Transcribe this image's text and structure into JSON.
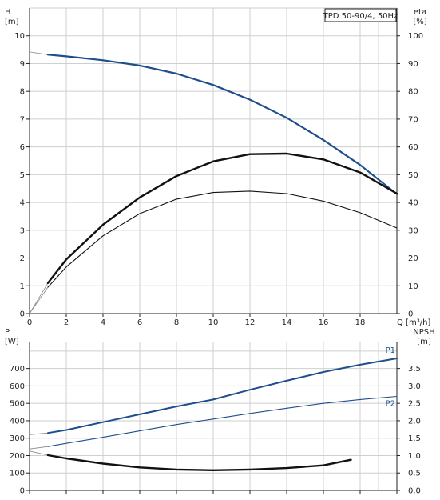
{
  "chart_data": [
    {
      "type": "line",
      "title": "TPD 50-90/4, 50Hz",
      "xlabel": "Q [m³/h]",
      "ylabel_left": [
        "H",
        "[m]"
      ],
      "ylabel_right": [
        "eta",
        "[%]"
      ],
      "xlim": [
        0,
        20
      ],
      "ylim_left": [
        0,
        11
      ],
      "ylim_right": [
        0,
        110
      ],
      "x_ticks": [
        0,
        2,
        4,
        6,
        8,
        10,
        12,
        14,
        16,
        18
      ],
      "y_ticks_left": [
        0,
        1,
        2,
        3,
        4,
        5,
        6,
        7,
        8,
        9,
        10
      ],
      "y_ticks_right": [
        0,
        10,
        20,
        30,
        40,
        50,
        60,
        70,
        80,
        90,
        100
      ],
      "grid": true,
      "series": [
        {
          "axis": "left",
          "color": "#1f4e8c",
          "x": [
            1,
            2,
            4,
            6,
            8,
            10,
            12,
            14,
            16,
            18,
            20
          ],
          "values": [
            9.32,
            9.26,
            9.12,
            8.93,
            8.64,
            8.23,
            7.7,
            7.05,
            6.25,
            5.35,
            4.3
          ]
        },
        {
          "axis": "right",
          "color": "#111111",
          "x": [
            1,
            2,
            4,
            6,
            8,
            10,
            12,
            14,
            16,
            18,
            20
          ],
          "values": [
            9.5,
            16.8,
            28,
            36,
            41.2,
            43.6,
            44.1,
            43.2,
            40.5,
            36.3,
            30.8
          ]
        },
        {
          "axis": "right",
          "color": "#111111",
          "x": [
            1,
            2,
            4,
            6,
            8,
            10,
            12,
            14,
            16,
            18,
            20
          ],
          "values": [
            11,
            19.5,
            32,
            41.8,
            49.5,
            54.8,
            57.4,
            57.6,
            55.5,
            50.8,
            43.2
          ]
        }
      ]
    },
    {
      "type": "line",
      "xlim": [
        0,
        20
      ],
      "ylim_left": [
        0,
        850
      ],
      "ylim_right": [
        0,
        4.25
      ],
      "ylabel_left": [
        "P",
        "[W]"
      ],
      "ylabel_right": [
        "NPSH",
        "[m]"
      ],
      "y_ticks_left": [
        0,
        100,
        200,
        300,
        400,
        500,
        600,
        700
      ],
      "y_ticks_right": [
        "0.0",
        "0.5",
        "1.0",
        "1.5",
        "2.0",
        "2.5",
        "3.0",
        "3.5"
      ],
      "grid": true,
      "series": [
        {
          "name": "P1",
          "axis": "left",
          "color": "#1f4e8c",
          "x": [
            1,
            2,
            4,
            6,
            8,
            10,
            12,
            14,
            16,
            18,
            20
          ],
          "values": [
            330,
            347,
            392,
            437,
            482,
            522,
            578,
            630,
            680,
            722,
            758
          ]
        },
        {
          "name": "P2",
          "axis": "left",
          "color": "#1f4e8c",
          "x": [
            1,
            2,
            4,
            6,
            8,
            10,
            12,
            14,
            16,
            18,
            20
          ],
          "values": [
            252,
            270,
            305,
            342,
            378,
            410,
            442,
            472,
            500,
            522,
            540
          ]
        },
        {
          "axis": "right",
          "color": "#111111",
          "x": [
            1,
            2,
            4,
            6,
            8,
            10,
            12,
            14,
            16,
            17.5
          ],
          "values": [
            1.01,
            0.92,
            0.77,
            0.66,
            0.6,
            0.58,
            0.6,
            0.64,
            0.72,
            0.88
          ]
        }
      ]
    }
  ]
}
